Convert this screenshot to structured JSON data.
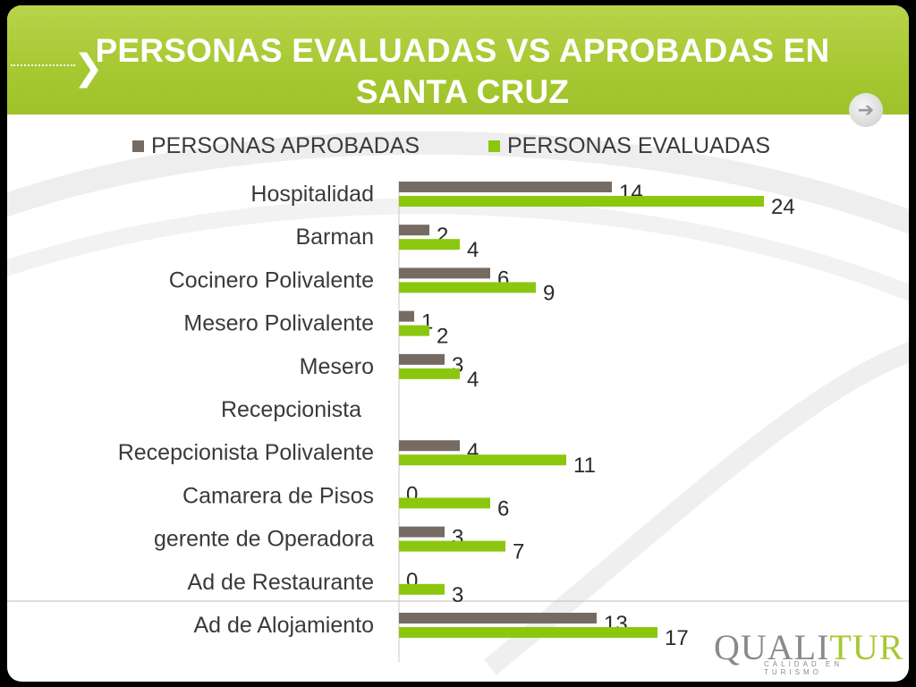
{
  "slide": {
    "title": "PERSONAS EVALUADAS VS APROBADAS EN SANTA CRUZ",
    "title_icon": "chevron-right-icon",
    "nav_button_icon": "arrow-right-icon",
    "colors": {
      "header": "#a6c832",
      "background": "#ffffff",
      "frame": "#000000"
    }
  },
  "logo": {
    "text_gray": "QUALI",
    "text_green": "TUR",
    "tagline": "CALIDAD EN TURISMO"
  },
  "chart_data": {
    "type": "bar",
    "orientation": "horizontal",
    "categories": [
      "Hospitalidad",
      "Barman",
      "Cocinero Polivalente",
      "Mesero Polivalente",
      "Mesero",
      "Recepcionista",
      "Recepcionista Polivalente",
      "Camarera de Pisos",
      "gerente de Operadora",
      "Ad de Restaurante",
      "Ad de Alojamiento"
    ],
    "series": [
      {
        "name": "PERSONAS APROBADAS",
        "color": "#756b63",
        "values": [
          14,
          2,
          6,
          1,
          3,
          null,
          4,
          0,
          3,
          0,
          13
        ]
      },
      {
        "name": "PERSONAS EVALUADAS",
        "color": "#8cc70f",
        "values": [
          24,
          4,
          9,
          2,
          4,
          null,
          11,
          6,
          7,
          3,
          17
        ]
      }
    ],
    "xlim": [
      0,
      24
    ],
    "grid": false,
    "legend_position": "top",
    "data_labels": true
  }
}
